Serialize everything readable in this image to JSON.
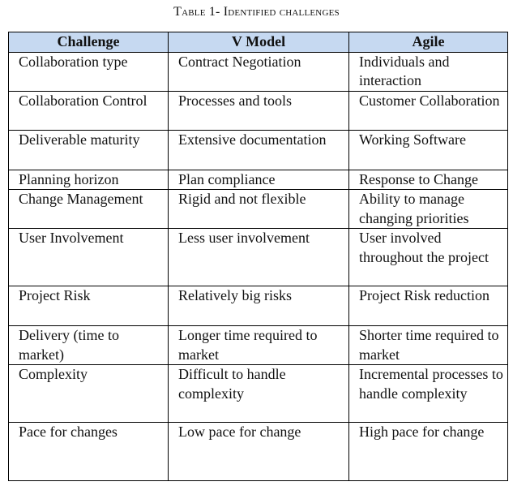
{
  "caption": "Table 1- Identified challenges",
  "table": {
    "headers": [
      "Challenge",
      "V Model",
      "Agile"
    ],
    "rows": [
      [
        "Collaboration type",
        "Contract Negotiation",
        "Individuals and interaction"
      ],
      [
        "Collaboration Control",
        "Processes and tools",
        "Customer Collaboration"
      ],
      [
        "Deliverable maturity",
        "Extensive documentation",
        "Working Software"
      ],
      [
        "Planning horizon",
        "Plan compliance",
        "Response to Change"
      ],
      [
        "Change Management",
        "Rigid and not flexible",
        "Ability to manage changing priorities"
      ],
      [
        "User Involvement",
        "Less user involvement",
        "User involved throughout the project"
      ],
      [
        "Project Risk",
        "Relatively big risks",
        "Project Risk reduction"
      ],
      [
        "Delivery (time to market)",
        "Longer time required to market",
        "Shorter time required to market"
      ],
      [
        "Complexity",
        "Difficult to handle complexity",
        "Incremental processes to handle complexity"
      ],
      [
        "Pace for changes",
        "Low pace for change",
        "High pace for change"
      ]
    ]
  },
  "colors": {
    "header_fill": "#c6d9f1",
    "border": "#000000"
  }
}
